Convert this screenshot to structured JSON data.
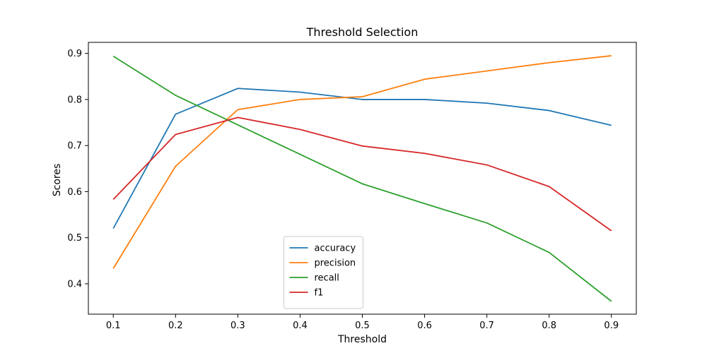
{
  "chart_data": {
    "type": "line",
    "title": "Threshold Selection",
    "xlabel": "Threshold",
    "ylabel": "Scores",
    "x": [
      0.1,
      0.2,
      0.3,
      0.4,
      0.5,
      0.6,
      0.7,
      0.8,
      0.9
    ],
    "x_tick_labels": [
      "0.1",
      "0.2",
      "0.3",
      "0.4",
      "0.5",
      "0.6",
      "0.7",
      "0.8",
      "0.9"
    ],
    "y_ticks": [
      0.4,
      0.5,
      0.6,
      0.7,
      0.8,
      0.9
    ],
    "y_tick_labels": [
      "0.4",
      "0.5",
      "0.6",
      "0.7",
      "0.8",
      "0.9"
    ],
    "xlim": [
      0.06,
      0.94
    ],
    "ylim": [
      0.334,
      0.924
    ],
    "grid": false,
    "legend_position": "bottom-center",
    "series": [
      {
        "name": "accuracy",
        "color": "#1f77b4",
        "values": [
          0.52,
          0.768,
          0.824,
          0.816,
          0.8,
          0.8,
          0.792,
          0.776,
          0.744
        ]
      },
      {
        "name": "precision",
        "color": "#ff7f0e",
        "values": [
          0.433,
          0.655,
          0.778,
          0.8,
          0.806,
          0.844,
          0.862,
          0.88,
          0.895
        ]
      },
      {
        "name": "recall",
        "color": "#2ca02c",
        "values": [
          0.894,
          0.809,
          0.745,
          0.681,
          0.617,
          0.574,
          0.532,
          0.468,
          0.362
        ]
      },
      {
        "name": "f1",
        "color": "#d62728",
        "values": [
          0.583,
          0.724,
          0.761,
          0.735,
          0.699,
          0.683,
          0.658,
          0.611,
          0.515
        ]
      }
    ]
  }
}
